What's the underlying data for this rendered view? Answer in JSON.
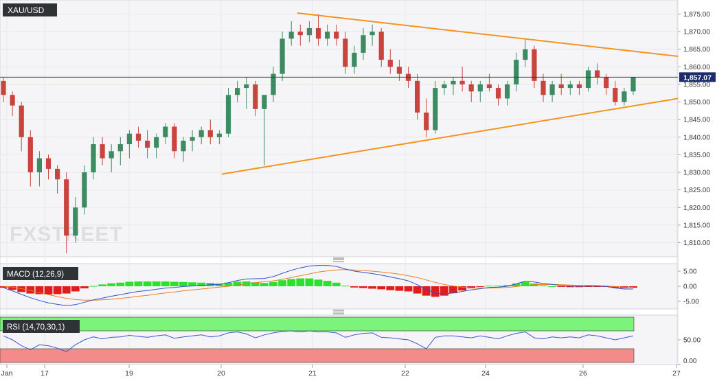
{
  "main_panel": {
    "symbol": "XAU/USD",
    "last_price": "1,857.07",
    "y_ticks": [
      "1,875.00",
      "1,870.00",
      "1,865.00",
      "1,860.00",
      "1,855.00",
      "1,850.00",
      "1,845.00",
      "1,840.00",
      "1,835.00",
      "1,830.00",
      "1,825.00",
      "1,820.00",
      "1,815.00",
      "1,810.00"
    ],
    "watermark": "FXSTREET"
  },
  "x_axis": {
    "ticks": [
      "Jan",
      "17",
      "19",
      "20",
      "21",
      "22",
      "24",
      "26",
      "27"
    ]
  },
  "macd_panel": {
    "label": "MACD (12,26,9)",
    "y_ticks": [
      "5.00",
      "0.00",
      "-5.00"
    ]
  },
  "rsi_panel": {
    "label": "RSI (14,70,30,1)",
    "y_ticks": [
      "50.00",
      "0.00"
    ]
  },
  "colors": {
    "bull": "#3d8b63",
    "bear": "#c8443c",
    "trend": "#f5931e",
    "price_line": "#1c2d6b",
    "macd": "#2f52c7",
    "signal": "#f07a1e",
    "hist_pos": "#2ee02e",
    "hist_neg": "#e01c1c",
    "rsi_line": "#3b55d0",
    "rsi_overbought": "#7cf47c",
    "rsi_oversold": "#f48a8a"
  },
  "chart_data": {
    "type": "candlestick",
    "symbol": "XAU/USD",
    "ylim": [
      1806,
      1879
    ],
    "last_price": 1857.07,
    "candles_ohlc": [
      [
        1856,
        1857,
        1850,
        1852
      ],
      [
        1852,
        1853,
        1846,
        1849
      ],
      [
        1849,
        1850,
        1836,
        1840
      ],
      [
        1840,
        1842,
        1826,
        1830
      ],
      [
        1830,
        1836,
        1826,
        1834
      ],
      [
        1834,
        1835,
        1828,
        1831
      ],
      [
        1831,
        1832,
        1824,
        1828
      ],
      [
        1828,
        1830,
        1807,
        1812
      ],
      [
        1812,
        1823,
        1810,
        1820
      ],
      [
        1820,
        1832,
        1818,
        1830
      ],
      [
        1830,
        1840,
        1828,
        1838
      ],
      [
        1838,
        1840,
        1832,
        1834
      ],
      [
        1834,
        1838,
        1830,
        1836
      ],
      [
        1836,
        1840,
        1832,
        1838
      ],
      [
        1838,
        1842,
        1834,
        1841
      ],
      [
        1841,
        1843,
        1837,
        1839
      ],
      [
        1839,
        1842,
        1834,
        1837
      ],
      [
        1837,
        1841,
        1834,
        1840
      ],
      [
        1840,
        1844,
        1838,
        1843
      ],
      [
        1843,
        1844,
        1834,
        1836
      ],
      [
        1836,
        1840,
        1833,
        1839
      ],
      [
        1839,
        1842,
        1836,
        1840
      ],
      [
        1840,
        1843,
        1838,
        1842
      ],
      [
        1842,
        1845,
        1838,
        1840
      ],
      [
        1840,
        1842,
        1838,
        1841
      ],
      [
        1841,
        1854,
        1840,
        1852
      ],
      [
        1852,
        1856,
        1850,
        1854
      ],
      [
        1854,
        1857,
        1848,
        1855
      ],
      [
        1855,
        1856,
        1846,
        1848
      ],
      [
        1848,
        1852,
        1832,
        1852
      ],
      [
        1852,
        1860,
        1850,
        1858
      ],
      [
        1858,
        1870,
        1856,
        1868
      ],
      [
        1868,
        1873,
        1866,
        1870
      ],
      [
        1870,
        1872,
        1866,
        1869
      ],
      [
        1869,
        1873,
        1867,
        1871
      ],
      [
        1871,
        1875,
        1866,
        1868
      ],
      [
        1868,
        1872,
        1866,
        1870
      ],
      [
        1870,
        1872,
        1866,
        1868
      ],
      [
        1868,
        1870,
        1858,
        1860
      ],
      [
        1860,
        1866,
        1858,
        1864
      ],
      [
        1864,
        1871,
        1862,
        1869
      ],
      [
        1869,
        1872,
        1866,
        1870
      ],
      [
        1870,
        1871,
        1860,
        1862
      ],
      [
        1862,
        1865,
        1858,
        1860
      ],
      [
        1860,
        1862,
        1856,
        1858
      ],
      [
        1858,
        1860,
        1854,
        1856
      ],
      [
        1856,
        1858,
        1845,
        1847
      ],
      [
        1847,
        1851,
        1840,
        1842
      ],
      [
        1842,
        1856,
        1841,
        1854
      ],
      [
        1854,
        1856,
        1852,
        1855
      ],
      [
        1855,
        1857,
        1852,
        1856
      ],
      [
        1856,
        1860,
        1853,
        1855
      ],
      [
        1855,
        1856,
        1850,
        1853
      ],
      [
        1853,
        1856,
        1850,
        1855
      ],
      [
        1855,
        1858,
        1853,
        1854
      ],
      [
        1854,
        1855,
        1849,
        1851
      ],
      [
        1851,
        1856,
        1849,
        1855
      ],
      [
        1855,
        1864,
        1853,
        1862
      ],
      [
        1862,
        1868,
        1860,
        1865
      ],
      [
        1865,
        1866,
        1854,
        1856
      ],
      [
        1856,
        1858,
        1850,
        1852
      ],
      [
        1852,
        1856,
        1850,
        1855
      ],
      [
        1855,
        1858,
        1852,
        1854
      ],
      [
        1854,
        1856,
        1852,
        1855
      ],
      [
        1855,
        1856,
        1852,
        1854
      ],
      [
        1854,
        1860,
        1853,
        1859
      ],
      [
        1859,
        1861,
        1855,
        1857
      ],
      [
        1857,
        1858,
        1852,
        1854
      ],
      [
        1854,
        1856,
        1849,
        1850
      ],
      [
        1850,
        1854,
        1849,
        1853
      ],
      [
        1853,
        1857,
        1852,
        1857
      ]
    ],
    "trendlines": [
      {
        "from": [
          "Jan 20",
          1829.5
        ],
        "to": [
          "Jan 27",
          1851
        ],
        "role": "support"
      },
      {
        "from": [
          "Jan 20",
          1876.5
        ],
        "to": [
          "Jan 27",
          1863
        ],
        "role": "resistance"
      }
    ],
    "x_tick_labels": [
      "Jan",
      "17",
      "19",
      "20",
      "21",
      "22",
      "24",
      "26",
      "27"
    ],
    "macd": {
      "label": "MACD (12,26,9)",
      "ylim": [
        -7.5,
        7.5
      ],
      "macd": [
        -0.5,
        -1.5,
        -2.7,
        -3.8,
        -4.7,
        -5.5,
        -6,
        -6.4,
        -6.1,
        -5.3,
        -4.5,
        -3.9,
        -3.3,
        -2.8,
        -2.2,
        -1.7,
        -1.4,
        -1,
        -0.6,
        -0.4,
        -0.1,
        0.1,
        0.3,
        0.5,
        0.6,
        1.2,
        1.9,
        2.4,
        2.5,
        2.6,
        3.2,
        4.3,
        5.3,
        6.1,
        6.7,
        6.9,
        6.9,
        6.6,
        5.7,
        5,
        4.6,
        4.2,
        3.7,
        3.1,
        2.5,
        1.8,
        0.5,
        -1,
        -2.2,
        -2.5,
        -2.2,
        -1.7,
        -1.2,
        -0.8,
        -0.4,
        -0.3,
        0,
        0.8,
        1.7,
        1.4,
        0.9,
        0.6,
        0.3,
        0.1,
        0,
        0.1,
        0.1,
        -0.1,
        -0.6,
        -0.9,
        -0.9
      ],
      "signal": [
        0,
        -0.3,
        -0.8,
        -1.4,
        -2.1,
        -2.8,
        -3.4,
        -4,
        -4.4,
        -4.6,
        -4.6,
        -4.5,
        -4.3,
        -4,
        -3.7,
        -3.3,
        -3,
        -2.6,
        -2.2,
        -1.9,
        -1.5,
        -1.2,
        -0.9,
        -0.6,
        -0.3,
        0,
        0.4,
        0.8,
        1.2,
        1.5,
        1.8,
        2.3,
        2.9,
        3.5,
        4.1,
        4.7,
        5.1,
        5.4,
        5.5,
        5.4,
        5.2,
        5,
        4.7,
        4.4,
        4,
        3.5,
        2.9,
        2.1,
        1.3,
        0.6,
        0.1,
        -0.3,
        -0.5,
        -0.6,
        -0.6,
        -0.5,
        -0.4,
        -0.1,
        0.3,
        0.5,
        0.6,
        0.6,
        0.5,
        0.4,
        0.3,
        0.3,
        0.2,
        0.1,
        -0.1,
        -0.3,
        -0.4
      ]
    },
    "rsi": {
      "label": "RSI (14,70,30,1)",
      "ylim": [
        0,
        100
      ],
      "overbought": 70,
      "oversold": 30,
      "values": [
        58,
        50,
        38,
        30,
        40,
        38,
        33,
        26,
        40,
        50,
        56,
        52,
        55,
        56,
        59,
        57,
        55,
        58,
        60,
        53,
        56,
        58,
        60,
        56,
        58,
        64,
        66,
        62,
        54,
        60,
        64,
        67,
        68,
        66,
        68,
        66,
        66,
        64,
        55,
        60,
        63,
        64,
        55,
        54,
        52,
        50,
        42,
        32,
        55,
        58,
        58,
        56,
        54,
        58,
        55,
        52,
        58,
        63,
        66,
        54,
        52,
        56,
        54,
        56,
        54,
        60,
        58,
        54,
        50,
        54,
        58
      ]
    }
  }
}
